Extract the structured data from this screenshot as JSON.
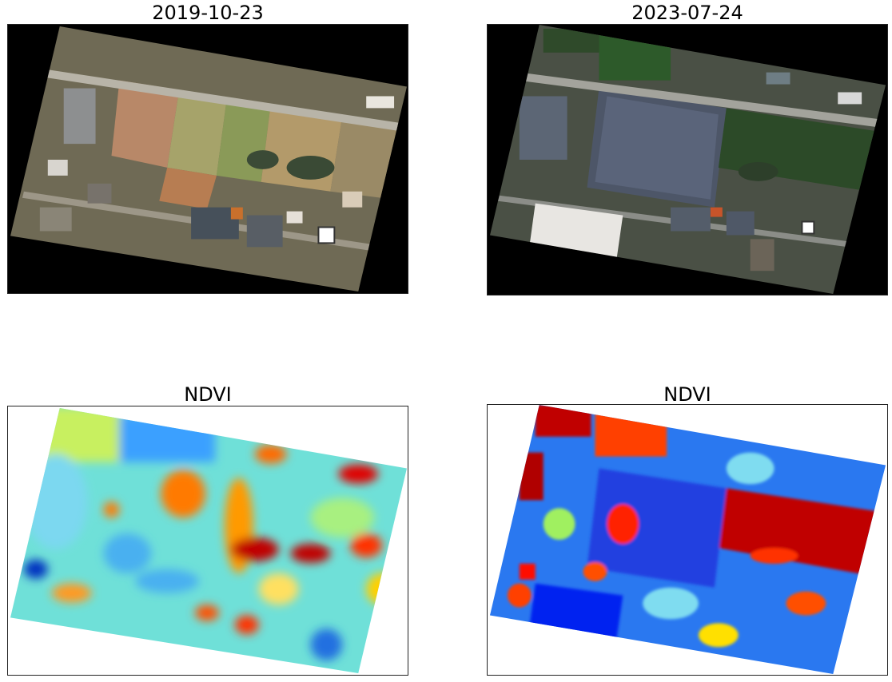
{
  "panels": {
    "top_left": {
      "title": "2019-10-23",
      "kind": "rgb-satellite"
    },
    "top_right": {
      "title": "2023-07-24",
      "kind": "rgb-satellite"
    },
    "bottom_left": {
      "title": "NDVI",
      "kind": "ndvi-heatmap",
      "colormap": "jet"
    },
    "bottom_right": {
      "title": "NDVI",
      "kind": "ndvi-heatmap",
      "colormap": "jet"
    }
  },
  "colors": {
    "nodata_rgb": "#000000",
    "nodata_ndvi": "#ffffff",
    "jet_low": "#0000ff",
    "jet_mid": "#7fff7f",
    "jet_high": "#ff0000"
  }
}
